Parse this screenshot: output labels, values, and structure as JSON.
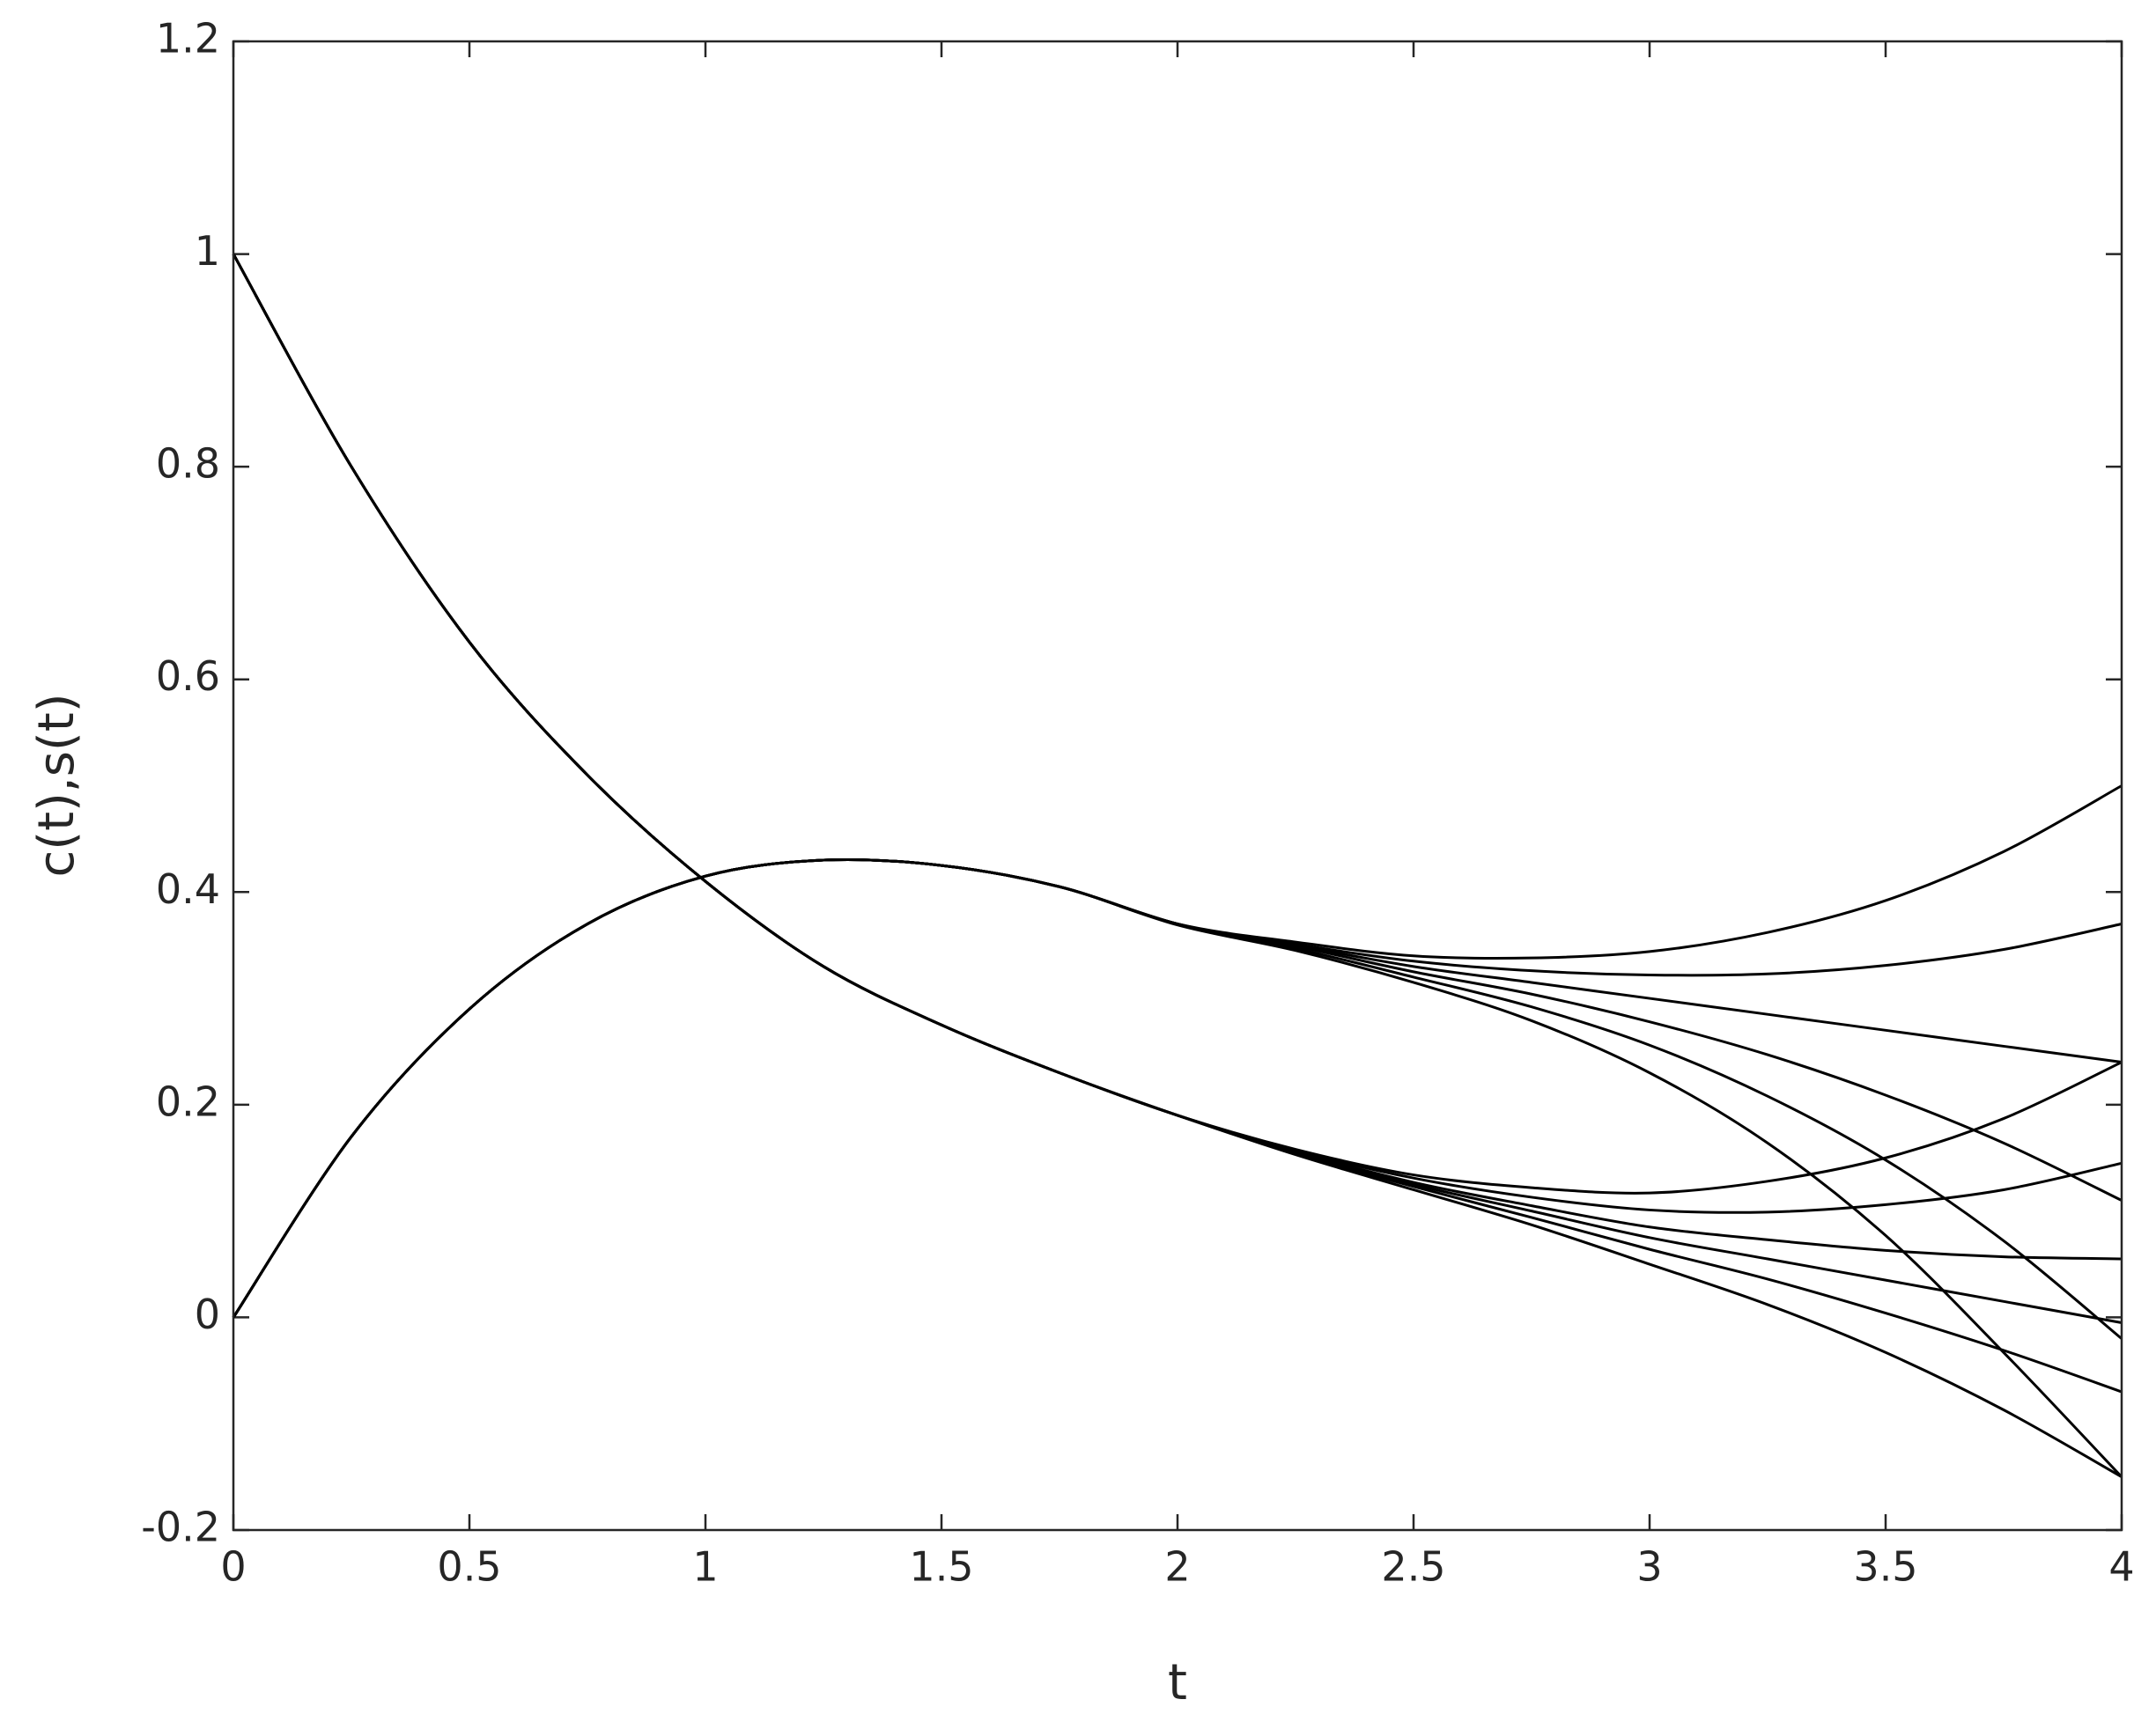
{
  "chart_data": {
    "type": "line",
    "xlabel": "t",
    "ylabel": "c(t),s(t)",
    "x": [
      0,
      0.25,
      0.5,
      0.75,
      1,
      1.25,
      1.5,
      1.75,
      2,
      2.25,
      2.5,
      2.75,
      3,
      3.25,
      3.5,
      3.75,
      4
    ],
    "xlim": [
      0,
      4
    ],
    "xticks": [
      0,
      0.5,
      1,
      1.5,
      2,
      2.5,
      3,
      3.5,
      4
    ],
    "ylim": [
      -0.2,
      1.2
    ],
    "yticks": [
      -0.2,
      0,
      0.2,
      0.4,
      0.6,
      0.8,
      1,
      1.2
    ],
    "grid": false,
    "box": true,
    "series": [
      {
        "color": "#000000",
        "values": [
          0,
          0.17,
          0.29,
          0.37,
          0.415,
          0.43,
          0.425,
          0.405,
          0.37,
          0.353,
          0.34,
          0.338,
          0.344,
          0.362,
          0.392,
          0.438,
          0.5
        ]
      },
      {
        "color": "#000000",
        "values": [
          0,
          0.17,
          0.29,
          0.37,
          0.415,
          0.43,
          0.425,
          0.405,
          0.37,
          0.351,
          0.335,
          0.326,
          0.322,
          0.323,
          0.331,
          0.346,
          0.37
        ]
      },
      {
        "color": "#000000",
        "values": [
          0,
          0.17,
          0.29,
          0.37,
          0.415,
          0.43,
          0.425,
          0.405,
          0.37,
          0.35,
          0.33,
          0.315,
          0.3,
          0.285,
          0.27,
          0.255,
          0.24
        ]
      },
      {
        "color": "#000000",
        "values": [
          0,
          0.17,
          0.29,
          0.37,
          0.415,
          0.43,
          0.425,
          0.405,
          0.37,
          0.349,
          0.325,
          0.304,
          0.278,
          0.247,
          0.209,
          0.164,
          0.11
        ]
      },
      {
        "color": "#000000",
        "values": [
          0,
          0.17,
          0.29,
          0.37,
          0.415,
          0.43,
          0.425,
          0.405,
          0.37,
          0.347,
          0.32,
          0.292,
          0.256,
          0.208,
          0.148,
          0.072,
          -0.02
        ]
      },
      {
        "color": "#000000",
        "values": [
          0,
          0.17,
          0.29,
          0.37,
          0.415,
          0.43,
          0.425,
          0.405,
          0.369,
          0.345,
          0.315,
          0.279,
          0.23,
          0.164,
          0.077,
          -0.033,
          -0.15
        ]
      },
      {
        "color": "#000000",
        "values": [
          1,
          0.8,
          0.635,
          0.51,
          0.41,
          0.33,
          0.275,
          0.23,
          0.19,
          0.158,
          0.134,
          0.122,
          0.117,
          0.128,
          0.15,
          0.187,
          0.24
        ]
      },
      {
        "color": "#000000",
        "values": [
          1,
          0.8,
          0.635,
          0.51,
          0.41,
          0.33,
          0.275,
          0.23,
          0.19,
          0.157,
          0.131,
          0.113,
          0.101,
          0.099,
          0.106,
          0.12,
          0.145
        ]
      },
      {
        "color": "#000000",
        "values": [
          1,
          0.8,
          0.635,
          0.51,
          0.41,
          0.33,
          0.275,
          0.23,
          0.19,
          0.156,
          0.127,
          0.105,
          0.085,
          0.073,
          0.063,
          0.057,
          0.055
        ]
      },
      {
        "color": "#000000",
        "values": [
          1,
          0.8,
          0.635,
          0.51,
          0.41,
          0.33,
          0.275,
          0.23,
          0.19,
          0.155,
          0.125,
          0.1,
          0.075,
          0.055,
          0.035,
          0.015,
          -0.005
        ]
      },
      {
        "color": "#000000",
        "values": [
          1,
          0.8,
          0.635,
          0.51,
          0.41,
          0.33,
          0.275,
          0.23,
          0.19,
          0.154,
          0.123,
          0.094,
          0.064,
          0.036,
          0.004,
          -0.031,
          -0.07
        ]
      },
      {
        "color": "#000000",
        "values": [
          1,
          0.8,
          0.635,
          0.51,
          0.41,
          0.33,
          0.275,
          0.23,
          0.19,
          0.153,
          0.12,
          0.087,
          0.05,
          0.012,
          -0.033,
          -0.087,
          -0.15
        ]
      }
    ]
  }
}
